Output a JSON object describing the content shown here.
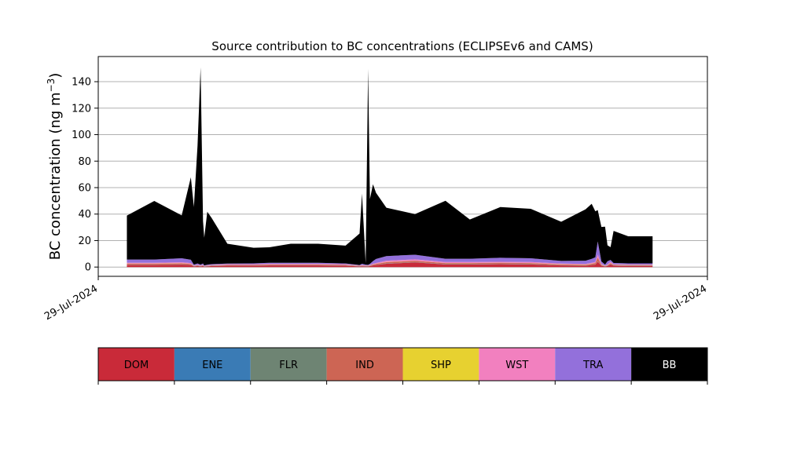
{
  "chart_data": {
    "type": "area",
    "title": "Source contribution to BC concentrations (ECLIPSEv6 and CAMS)",
    "ylabel": "BC concentration (ng m",
    "ylabel_sup": "−3",
    "ylabel_close": ")",
    "ylim": [
      -7,
      159
    ],
    "yticks": [
      0,
      20,
      40,
      60,
      80,
      100,
      120,
      140
    ],
    "xlim": [
      0,
      100
    ],
    "xtick_labels": [
      "29-Jul-2024",
      "29-Jul-2024"
    ],
    "grid": "horizontal",
    "x": [
      4.7,
      9.2,
      13.7,
      15.2,
      15.7,
      16.3,
      16.8,
      17.2,
      17.4,
      17.9,
      18.6,
      21.2,
      25.5,
      28.1,
      31.6,
      36.1,
      40.6,
      42.9,
      43.3,
      43.9,
      44.3,
      44.6,
      45.1,
      45.6,
      47.3,
      52.0,
      57.0,
      61.0,
      66.0,
      71.0,
      76.0,
      80.0,
      81.0,
      81.6,
      82.0,
      82.6,
      83.2,
      83.6,
      84.1,
      84.6,
      87.0,
      91.0
    ],
    "series": [
      {
        "name": "DOM",
        "color": "#c92a39",
        "values": [
          1.5,
          1.5,
          1.8,
          1.5,
          0.5,
          0.8,
          0.5,
          0.8,
          0.3,
          0.5,
          0.8,
          1.0,
          1.0,
          1.2,
          1.2,
          1.2,
          1.0,
          0.5,
          0.6,
          0.5,
          0.5,
          0.7,
          1.2,
          1.5,
          2.5,
          3.5,
          2.0,
          2.0,
          2.2,
          2.0,
          1.2,
          1.0,
          1.5,
          1.8,
          4.0,
          1.0,
          0.4,
          0.8,
          2.0,
          1.0,
          0.8,
          0.8
        ]
      },
      {
        "name": "ENE",
        "color": "#3a7bb5",
        "values": [
          0.1,
          0.1,
          0.1,
          0.1,
          0.1,
          0.1,
          0.1,
          0.1,
          0.1,
          0.1,
          0.1,
          0.1,
          0.1,
          0.1,
          0.1,
          0.1,
          0.1,
          0.1,
          0.1,
          0.1,
          0.1,
          0.1,
          0.1,
          0.1,
          0.1,
          0.1,
          0.1,
          0.1,
          0.1,
          0.1,
          0.1,
          0.1,
          0.1,
          0.1,
          0.1,
          0.1,
          0.1,
          0.1,
          0.1,
          0.1,
          0.1,
          0.1
        ]
      },
      {
        "name": "FLR",
        "color": "#6e8473",
        "values": [
          0.1,
          0.1,
          0.1,
          0.1,
          0.1,
          0.1,
          0.1,
          0.1,
          0.1,
          0.1,
          0.1,
          0.1,
          0.1,
          0.1,
          0.1,
          0.1,
          0.1,
          0.1,
          0.1,
          0.1,
          0.1,
          0.1,
          0.1,
          0.1,
          0.1,
          0.1,
          0.1,
          0.1,
          0.1,
          0.1,
          0.1,
          0.1,
          0.1,
          0.1,
          0.1,
          0.1,
          0.1,
          0.1,
          0.1,
          0.1,
          0.1,
          0.1
        ]
      },
      {
        "name": "IND",
        "color": "#cd6554",
        "values": [
          0.8,
          0.8,
          0.8,
          0.6,
          0.2,
          0.3,
          0.2,
          0.3,
          0.1,
          0.2,
          0.3,
          0.4,
          0.4,
          0.5,
          0.5,
          0.5,
          0.4,
          0.2,
          0.3,
          0.2,
          0.2,
          0.3,
          0.5,
          0.7,
          1.0,
          1.0,
          0.8,
          0.8,
          0.8,
          0.8,
          0.6,
          0.5,
          0.8,
          1.0,
          3.0,
          0.5,
          0.2,
          0.4,
          0.8,
          0.4,
          0.4,
          0.4
        ]
      },
      {
        "name": "SHP",
        "color": "#e7d130",
        "values": [
          0.1,
          0.1,
          0.1,
          0.1,
          0.1,
          0.1,
          0.1,
          0.1,
          0.1,
          0.1,
          0.1,
          0.1,
          0.1,
          0.1,
          0.1,
          0.1,
          0.1,
          0.1,
          0.1,
          0.1,
          0.1,
          0.1,
          0.1,
          0.1,
          0.1,
          0.1,
          0.1,
          0.1,
          0.1,
          0.1,
          0.1,
          0.1,
          0.1,
          0.1,
          0.1,
          0.1,
          0.1,
          0.1,
          0.1,
          0.1,
          0.1,
          0.1
        ]
      },
      {
        "name": "WST",
        "color": "#f280bf",
        "values": [
          0.6,
          0.6,
          0.7,
          0.6,
          0.3,
          0.3,
          0.3,
          0.3,
          0.2,
          0.3,
          0.3,
          0.4,
          0.4,
          0.4,
          0.4,
          0.4,
          0.4,
          0.2,
          0.3,
          0.2,
          0.2,
          0.3,
          0.5,
          0.6,
          1.0,
          1.0,
          0.7,
          0.7,
          0.7,
          0.7,
          0.5,
          0.5,
          0.6,
          0.8,
          2.0,
          0.5,
          0.2,
          0.4,
          0.8,
          0.4,
          0.4,
          0.4
        ]
      },
      {
        "name": "TRA",
        "color": "#9370db",
        "values": [
          2.5,
          2.5,
          3.0,
          2.5,
          0.5,
          1.0,
          0.5,
          1.0,
          0.3,
          0.5,
          0.5,
          0.5,
          0.7,
          0.8,
          0.8,
          0.8,
          0.6,
          0.3,
          1.0,
          0.6,
          0.5,
          0.8,
          2.0,
          3.0,
          3.5,
          3.5,
          2.5,
          2.5,
          3.0,
          2.8,
          2.0,
          2.5,
          3.0,
          3.5,
          10.0,
          2.0,
          0.8,
          2.5,
          1.5,
          1.0,
          0.9,
          0.9
        ]
      },
      {
        "name": "BB",
        "color": "#000000",
        "values": [
          33.2,
          44.2,
          32.4,
          62.3,
          43.7,
          89.0,
          149.0,
          32.0,
          21.0,
          40.0,
          35.0,
          15.0,
          11.8,
          11.7,
          14.4,
          14.4,
          13.5,
          23.8,
          53.0,
          1.0,
          147.9,
          49.0,
          58.0,
          50.0,
          36.5,
          30.7,
          43.8,
          29.6,
          38.3,
          37.4,
          29.6,
          38.8,
          41.6,
          34.7,
          23.7,
          26.0,
          28.6,
          12.0,
          9.6,
          24.2,
          20.4,
          20.4
        ]
      }
    ],
    "legend": {
      "placement": "bottom",
      "entries": [
        {
          "label": "DOM",
          "color": "#c92a39",
          "text_color": "#000000"
        },
        {
          "label": "ENE",
          "color": "#3a7bb5",
          "text_color": "#000000"
        },
        {
          "label": "FLR",
          "color": "#6e8473",
          "text_color": "#000000"
        },
        {
          "label": "IND",
          "color": "#cd6554",
          "text_color": "#000000"
        },
        {
          "label": "SHP",
          "color": "#e7d130",
          "text_color": "#000000"
        },
        {
          "label": "WST",
          "color": "#f280bf",
          "text_color": "#000000"
        },
        {
          "label": "TRA",
          "color": "#9370db",
          "text_color": "#000000"
        },
        {
          "label": "BB",
          "color": "#000000",
          "text_color": "#ffffff"
        }
      ]
    }
  }
}
